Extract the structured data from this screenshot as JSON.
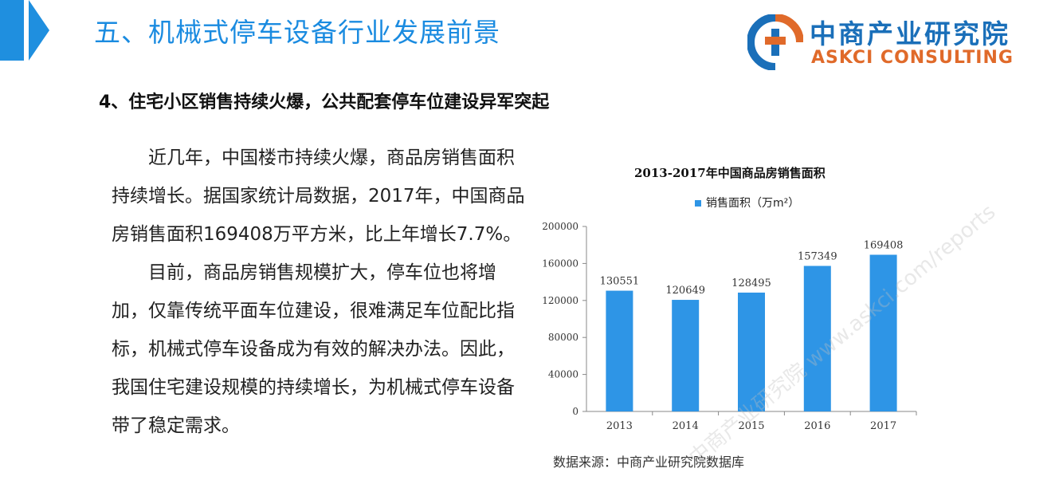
{
  "header": {
    "title": "五、机械式停车设备行业发展前景",
    "logo_cn": "中商产业研究院",
    "logo_en": "ASKCI CONSULTING"
  },
  "section": {
    "heading": "4、住宅小区销售持续火爆，公共配套停车位建设异军突起"
  },
  "paragraphs": [
    "近几年，中国楼市持续火爆，商品房销售面积持续增长。据国家统计局数据，2017年，中国商品房销售面积169408万平方米，比上年增长7.7%。",
    "目前，商品房销售规模扩大，停车位也将增加，仅靠传统平面车位建设，很难满足车位配比指标，机械式停车设备成为有效的解决办法。因此，我国住宅建设规模的持续增长，为机械式停车设备带了稳定需求。"
  ],
  "source": "数据来源：中商产业研究院数据库",
  "colors": {
    "accent": "#1f8fdf",
    "bar": "#2e95e6",
    "logo_blue": "#1a6fb9",
    "logo_orange": "#e06a2a"
  },
  "chart_data": {
    "type": "bar",
    "title": "2013-2017年中国商品房销售面积",
    "categories": [
      "2013",
      "2014",
      "2015",
      "2016",
      "2017"
    ],
    "series": [
      {
        "name": "销售面积（万m²）",
        "values": [
          130551,
          120649,
          128495,
          157349,
          169408
        ]
      }
    ],
    "ylim": [
      0,
      200000
    ],
    "yticks": [
      0,
      40000,
      80000,
      120000,
      160000,
      200000
    ],
    "grid": false,
    "legend": "top"
  }
}
